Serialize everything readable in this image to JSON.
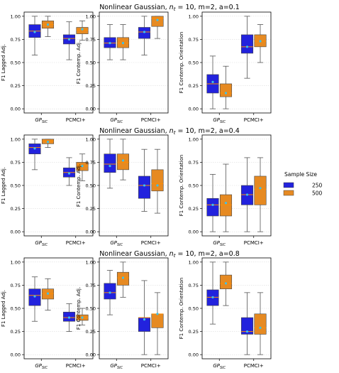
{
  "colors": {
    "c250": "#2222dd",
    "c500": "#e68a22",
    "median": "#ff8c00",
    "mean": "#3ec0e8",
    "grid": "#dddddd",
    "axis": "#000000"
  },
  "legend": {
    "title": "Sample Size",
    "entries": [
      "250",
      "500"
    ]
  },
  "chart_data": [
    {
      "type": "box",
      "row_title": "Nonlinear Gaussian, n_t = 10, m=2, a=0.1",
      "row_title_parts": {
        "prefix": "Nonlinear Gaussian, ",
        "var": "n",
        "sub": "t",
        "suffix": " = 10, m=2, a=0.1"
      },
      "panels": [
        {
          "ylabel": "F1 Lagged Adj.",
          "ylim": [
            0,
            1.0
          ],
          "yticks": [
            "0.00",
            "0.25",
            "0.50",
            "0.75",
            "1.00"
          ],
          "ytick_values": [
            0,
            0.25,
            0.5,
            0.75,
            1.0
          ],
          "categories": [
            "GP_SIC",
            "PCMCI+"
          ],
          "series": [
            {
              "name": "250",
              "boxes": [
                {
                  "whislo": 0.58,
                  "q1": 0.77,
                  "med": 0.84,
                  "q3": 0.91,
                  "whishi": 1.0,
                  "mean": 0.83
                },
                {
                  "whislo": 0.53,
                  "q1": 0.7,
                  "med": 0.76,
                  "q3": 0.8,
                  "whishi": 0.94,
                  "mean": 0.75
                }
              ]
            },
            {
              "name": "500",
              "boxes": [
                {
                  "whislo": 0.78,
                  "q1": 0.87,
                  "med": 0.91,
                  "q3": 0.95,
                  "whishi": 1.0,
                  "mean": 0.91
                },
                {
                  "whislo": 0.74,
                  "q1": 0.81,
                  "med": 0.85,
                  "q3": 0.88,
                  "whishi": 0.95,
                  "mean": 0.86
                }
              ]
            }
          ]
        },
        {
          "ylabel": "F1 Contemp. Adj.",
          "ylim": [
            0,
            1.0
          ],
          "yticks": [
            "0.00",
            "0.25",
            "0.50",
            "0.75",
            "1.00"
          ],
          "ytick_values": [
            0,
            0.25,
            0.5,
            0.75,
            1.0
          ],
          "categories": [
            "GP_SIC",
            "PCMCI+"
          ],
          "series": [
            {
              "name": "250",
              "boxes": [
                {
                  "whislo": 0.53,
                  "q1": 0.66,
                  "med": 0.71,
                  "q3": 0.77,
                  "whishi": 0.91,
                  "mean": 0.71
                },
                {
                  "whislo": 0.58,
                  "q1": 0.76,
                  "med": 0.83,
                  "q3": 0.88,
                  "whishi": 1.0,
                  "mean": 0.83
                }
              ]
            },
            {
              "name": "500",
              "boxes": [
                {
                  "whislo": 0.53,
                  "q1": 0.66,
                  "med": 0.71,
                  "q3": 0.77,
                  "whishi": 0.91,
                  "mean": 0.71
                },
                {
                  "whislo": 0.76,
                  "q1": 0.89,
                  "med": 0.98,
                  "q3": 1.0,
                  "whishi": 1.0,
                  "mean": 0.96
                }
              ]
            }
          ]
        },
        {
          "ylabel": "F1 Contemp. Orientation",
          "ylim": [
            0,
            1.0
          ],
          "yticks": [
            "0.00",
            "0.25",
            "0.50",
            "0.75",
            "1.00"
          ],
          "ytick_values": [
            0,
            0.25,
            0.5,
            0.75,
            1.0
          ],
          "categories": [
            "GP_SIC",
            "PCMCI+"
          ],
          "series": [
            {
              "name": "250",
              "boxes": [
                {
                  "whislo": 0.0,
                  "q1": 0.17,
                  "med": 0.27,
                  "q3": 0.37,
                  "whishi": 0.57,
                  "mean": 0.29
                },
                {
                  "whislo": 0.33,
                  "q1": 0.6,
                  "med": 0.67,
                  "q3": 0.8,
                  "whishi": 1.0,
                  "mean": 0.67
                }
              ]
            },
            {
              "name": "500",
              "boxes": [
                {
                  "whislo": 0.0,
                  "q1": 0.13,
                  "med": 0.17,
                  "q3": 0.27,
                  "whishi": 0.46,
                  "mean": 0.17
                },
                {
                  "whislo": 0.5,
                  "q1": 0.67,
                  "med": 0.73,
                  "q3": 0.8,
                  "whishi": 0.91,
                  "mean": 0.73
                }
              ]
            }
          ]
        }
      ]
    },
    {
      "type": "box",
      "row_title": "Nonlinear Gaussian, n_t = 10, m=2, a=0.4",
      "row_title_parts": {
        "prefix": "Nonlinear Gaussian, ",
        "var": "n",
        "sub": "t",
        "suffix": " = 10, m=2, a=0.4"
      },
      "panels": [
        {
          "ylabel": "F1 Lagged Adj.",
          "ylim": [
            0,
            1.0
          ],
          "yticks": [
            "0.00",
            "0.25",
            "0.50",
            "0.75",
            "1.00"
          ],
          "ytick_values": [
            0,
            0.25,
            0.5,
            0.75,
            1.0
          ],
          "categories": [
            "GP_SIC",
            "PCMCI+"
          ],
          "series": [
            {
              "name": "250",
              "boxes": [
                {
                  "whislo": 0.67,
                  "q1": 0.84,
                  "med": 0.91,
                  "q3": 0.95,
                  "whishi": 1.0,
                  "mean": 0.9
                },
                {
                  "whislo": 0.5,
                  "q1": 0.59,
                  "med": 0.64,
                  "q3": 0.69,
                  "whishi": 0.8,
                  "mean": 0.63
                }
              ]
            },
            {
              "name": "500",
              "boxes": [
                {
                  "whislo": 0.91,
                  "q1": 0.95,
                  "med": 0.98,
                  "q3": 1.0,
                  "whishi": 1.0,
                  "mean": 0.97
                },
                {
                  "whislo": 0.55,
                  "q1": 0.66,
                  "med": 0.71,
                  "q3": 0.75,
                  "whishi": 0.84,
                  "mean": 0.71
                }
              ]
            }
          ]
        },
        {
          "ylabel": "F1 Contemp. Adj.",
          "ylim": [
            0,
            1.0
          ],
          "yticks": [
            "0.00",
            "0.25",
            "0.50",
            "0.75",
            "1.00"
          ],
          "ytick_values": [
            0,
            0.25,
            0.5,
            0.75,
            1.0
          ],
          "categories": [
            "GP_SIC",
            "PCMCI+"
          ],
          "series": [
            {
              "name": "250",
              "boxes": [
                {
                  "whislo": 0.47,
                  "q1": 0.64,
                  "med": 0.73,
                  "q3": 0.84,
                  "whishi": 1.0,
                  "mean": 0.71
                },
                {
                  "whislo": 0.22,
                  "q1": 0.36,
                  "med": 0.5,
                  "q3": 0.6,
                  "whishi": 0.89,
                  "mean": 0.5
                }
              ]
            },
            {
              "name": "500",
              "boxes": [
                {
                  "whislo": 0.56,
                  "q1": 0.67,
                  "med": 0.75,
                  "q3": 0.84,
                  "whishi": 1.0,
                  "mean": 0.77
                },
                {
                  "whislo": 0.2,
                  "q1": 0.44,
                  "med": 0.52,
                  "q3": 0.67,
                  "whishi": 0.89,
                  "mean": 0.5
                }
              ]
            }
          ]
        },
        {
          "ylabel": "F1 Contemp. Orientation",
          "ylim": [
            0,
            1.0
          ],
          "yticks": [
            "0.00",
            "0.25",
            "0.50",
            "0.75",
            "1.00"
          ],
          "ytick_values": [
            0,
            0.25,
            0.5,
            0.75,
            1.0
          ],
          "categories": [
            "GP_SIC",
            "PCMCI+"
          ],
          "series": [
            {
              "name": "250",
              "boxes": [
                {
                  "whislo": 0.0,
                  "q1": 0.17,
                  "med": 0.29,
                  "q3": 0.36,
                  "whishi": 0.62,
                  "mean": 0.29
                },
                {
                  "whislo": 0.0,
                  "q1": 0.29,
                  "med": 0.4,
                  "q3": 0.5,
                  "whishi": 0.8,
                  "mean": 0.4
                }
              ]
            },
            {
              "name": "500",
              "boxes": [
                {
                  "whislo": 0.0,
                  "q1": 0.17,
                  "med": 0.29,
                  "q3": 0.4,
                  "whishi": 0.73,
                  "mean": 0.31
                },
                {
                  "whislo": 0.0,
                  "q1": 0.29,
                  "med": 0.46,
                  "q3": 0.6,
                  "whishi": 0.8,
                  "mean": 0.47
                }
              ]
            }
          ]
        }
      ]
    },
    {
      "type": "box",
      "row_title": "Nonlinear Gaussian, n_t = 10, m=2, a=0.8",
      "row_title_parts": {
        "prefix": "Nonlinear Gaussian, ",
        "var": "n",
        "sub": "t",
        "suffix": " = 10, m=2, a=0.8"
      },
      "panels": [
        {
          "ylabel": "F1 Lagged Adj.",
          "ylim": [
            0,
            1.0
          ],
          "yticks": [
            "0.00",
            "0.25",
            "0.50",
            "0.75",
            "1.00"
          ],
          "ytick_values": [
            0,
            0.25,
            0.5,
            0.75,
            1.0
          ],
          "categories": [
            "GP_SIC",
            "PCMCI+"
          ],
          "series": [
            {
              "name": "250",
              "boxes": [
                {
                  "whislo": 0.36,
                  "q1": 0.53,
                  "med": 0.64,
                  "q3": 0.71,
                  "whishi": 0.84,
                  "mean": 0.63
                },
                {
                  "whislo": 0.25,
                  "q1": 0.36,
                  "med": 0.4,
                  "q3": 0.46,
                  "whishi": 0.55,
                  "mean": 0.4
                }
              ]
            },
            {
              "name": "500",
              "boxes": [
                {
                  "whislo": 0.48,
                  "q1": 0.6,
                  "med": 0.66,
                  "q3": 0.71,
                  "whishi": 0.82,
                  "mean": 0.66
                },
                {
                  "whislo": 0.32,
                  "q1": 0.37,
                  "med": 0.4,
                  "q3": 0.43,
                  "whishi": 0.5,
                  "mean": 0.4
                }
              ]
            }
          ]
        },
        {
          "ylabel": "F1 Contemp. Adj.",
          "ylim": [
            0,
            1.0
          ],
          "yticks": [
            "0.00",
            "0.25",
            "0.50",
            "0.75",
            "1.00"
          ],
          "ytick_values": [
            0,
            0.25,
            0.5,
            0.75,
            1.0
          ],
          "categories": [
            "GP_SIC",
            "PCMCI+"
          ],
          "series": [
            {
              "name": "250",
              "boxes": [
                {
                  "whislo": 0.43,
                  "q1": 0.6,
                  "med": 0.67,
                  "q3": 0.77,
                  "whishi": 0.91,
                  "mean": 0.67
                },
                {
                  "whislo": 0.0,
                  "q1": 0.25,
                  "med": 0.4,
                  "q3": 0.4,
                  "whishi": 0.8,
                  "mean": 0.38
                }
              ]
            },
            {
              "name": "500",
              "boxes": [
                {
                  "whislo": 0.62,
                  "q1": 0.75,
                  "med": 0.83,
                  "q3": 0.89,
                  "whishi": 1.0,
                  "mean": 0.83
                },
                {
                  "whislo": 0.0,
                  "q1": 0.29,
                  "med": 0.44,
                  "q3": 0.44,
                  "whishi": 0.67,
                  "mean": 0.44
                }
              ]
            }
          ]
        },
        {
          "ylabel": "F1 Contemp. Orientation",
          "ylim": [
            0,
            1.0
          ],
          "yticks": [
            "0.00",
            "0.25",
            "0.50",
            "0.75",
            "1.00"
          ],
          "ytick_values": [
            0,
            0.25,
            0.5,
            0.75,
            1.0
          ],
          "categories": [
            "GP_SIC",
            "PCMCI+"
          ],
          "series": [
            {
              "name": "250",
              "boxes": [
                {
                  "whislo": 0.33,
                  "q1": 0.53,
                  "med": 0.62,
                  "q3": 0.7,
                  "whishi": 1.0,
                  "mean": 0.62
                },
                {
                  "whislo": 0.0,
                  "q1": 0.22,
                  "med": 0.25,
                  "q3": 0.4,
                  "whishi": 0.67,
                  "mean": 0.25
                }
              ]
            },
            {
              "name": "500",
              "boxes": [
                {
                  "whislo": 0.53,
                  "q1": 0.71,
                  "med": 0.77,
                  "q3": 0.86,
                  "whishi": 1.0,
                  "mean": 0.77
                },
                {
                  "whislo": 0.0,
                  "q1": 0.22,
                  "med": 0.29,
                  "q3": 0.44,
                  "whishi": 0.67,
                  "mean": 0.29
                }
              ]
            }
          ]
        }
      ]
    }
  ]
}
